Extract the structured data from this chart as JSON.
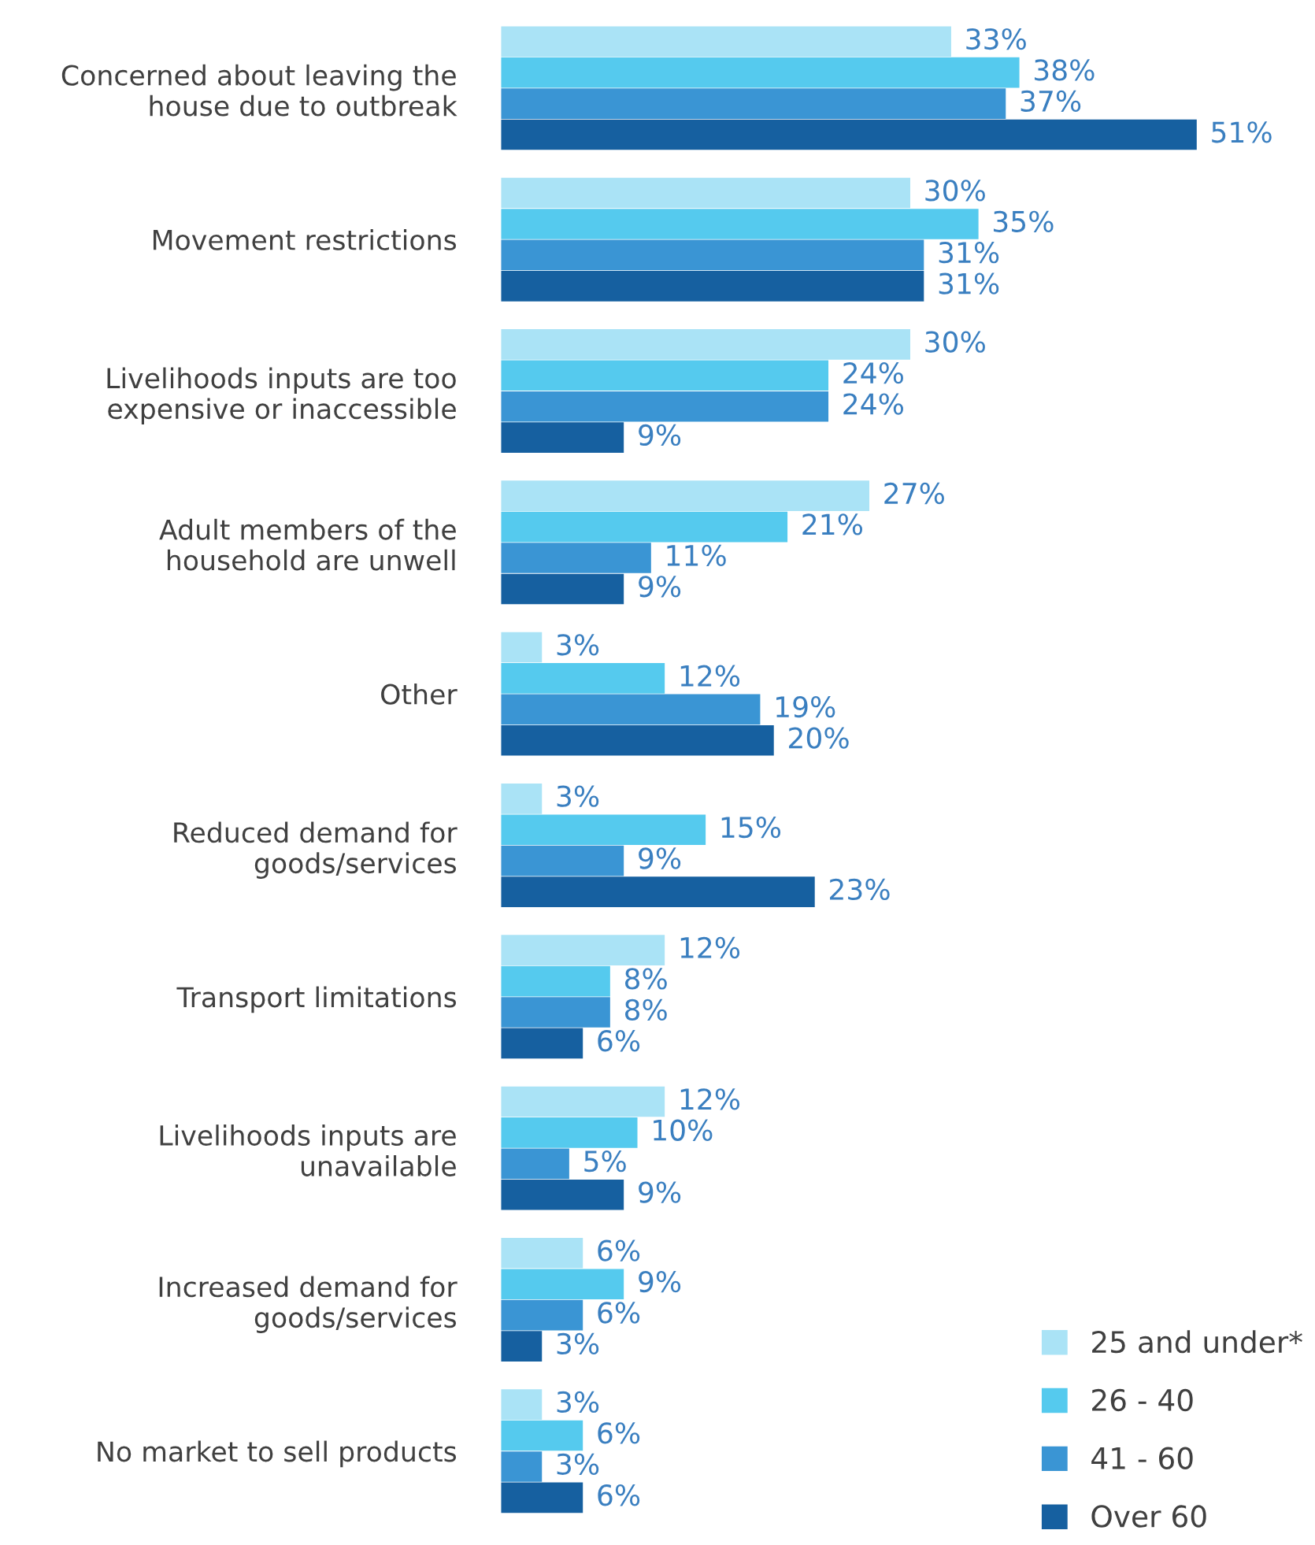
{
  "chart_data": {
    "type": "bar",
    "orientation": "horizontal",
    "legend": "bottom right",
    "grid": false,
    "categories": [
      "Concerned about leaving the\nhouse due to outbreak",
      "Movement restrictions",
      "Livelihoods inputs are too\nexpensive or inaccessible",
      "Adult members of the\nhousehold are unwell",
      "Other",
      "Reduced demand for\ngoods/services",
      "Transport limitations",
      "Livelihoods inputs are\nunavailable",
      "Increased demand for\ngoods/services",
      "No market to sell products"
    ],
    "series": [
      {
        "name": "25 and under*",
        "color": "#aae3f6",
        "values": [
          33,
          30,
          30,
          27,
          3,
          3,
          12,
          12,
          6,
          3
        ],
        "value_labels": [
          "33%",
          "30%",
          "30%",
          "27%",
          "3%",
          "3%",
          "12%",
          "12%",
          "6%",
          "3%"
        ]
      },
      {
        "name": "26 - 40",
        "color": "#55caee",
        "values": [
          38,
          35,
          24,
          21,
          12,
          15,
          8,
          10,
          9,
          6
        ],
        "value_labels": [
          "38%",
          "35%",
          "24%",
          "21%",
          "12%",
          "15%",
          "8%",
          "10%",
          "9%",
          "6%"
        ]
      },
      {
        "name": "41 - 60",
        "color": "#3a95d4",
        "values": [
          37,
          31,
          24,
          11,
          19,
          9,
          8,
          5,
          6,
          3
        ],
        "value_labels": [
          "37%",
          "31%",
          "24%",
          "11%",
          "19%",
          "9%",
          "8%",
          "5%",
          "6%",
          "3%"
        ]
      },
      {
        "name": "Over 60",
        "color": "#1660a0",
        "values": [
          51,
          31,
          9,
          9,
          20,
          23,
          6,
          9,
          3,
          6
        ],
        "value_labels": [
          "51%",
          "31%",
          "9%",
          "9%",
          "20%",
          "23%",
          "6%",
          "9%",
          "3%",
          "6%"
        ]
      }
    ]
  }
}
